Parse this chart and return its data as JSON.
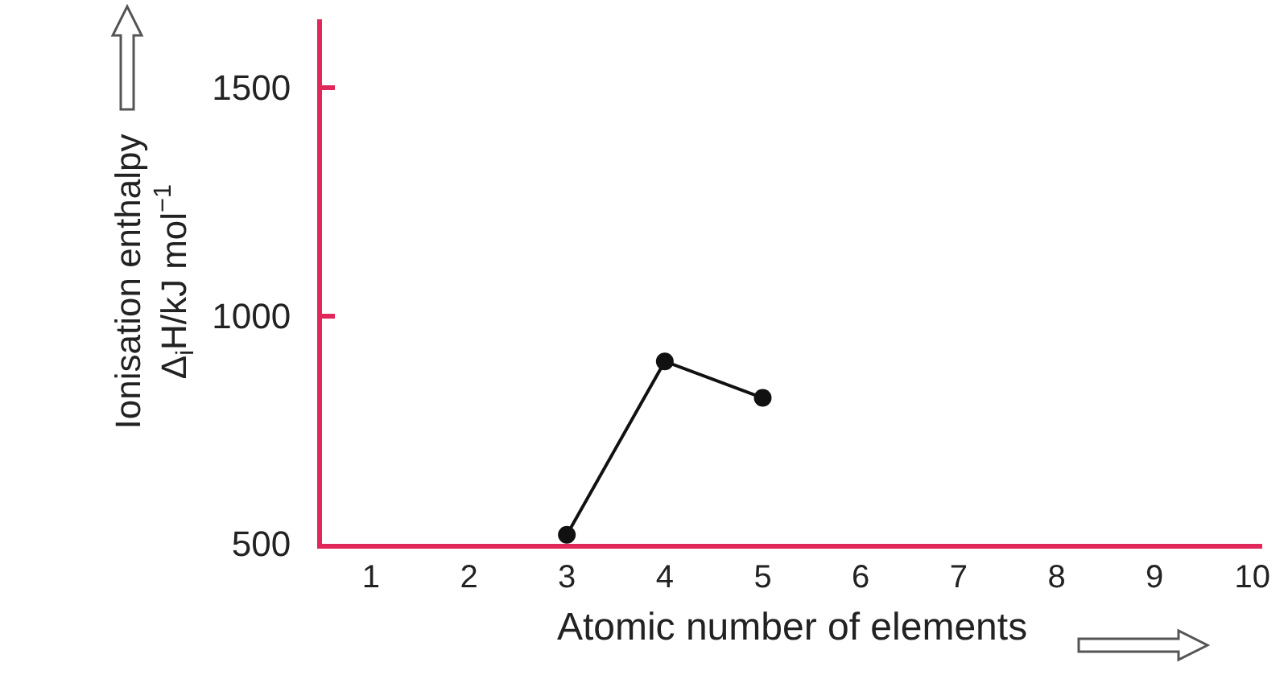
{
  "chart_data": {
    "type": "line",
    "xlabel": "Atomic number of elements",
    "ylabel": "Ionisation enthalpy\nΔ$_{i}$H/kJ mol$^{−1}$",
    "x": [
      3,
      4,
      5
    ],
    "series": [
      {
        "color": "#111111",
        "values": [
          520,
          900,
          820
        ]
      }
    ],
    "xlim": [
      0.5,
      10.1
    ],
    "xticks": [
      1,
      2,
      3,
      4,
      5,
      6,
      7,
      8,
      9,
      10
    ],
    "ylim": [
      500,
      1650
    ],
    "yticks": [
      500,
      1000,
      1500
    ],
    "grid": false,
    "legend": false,
    "marker": "circle",
    "line_style": "solid"
  }
}
